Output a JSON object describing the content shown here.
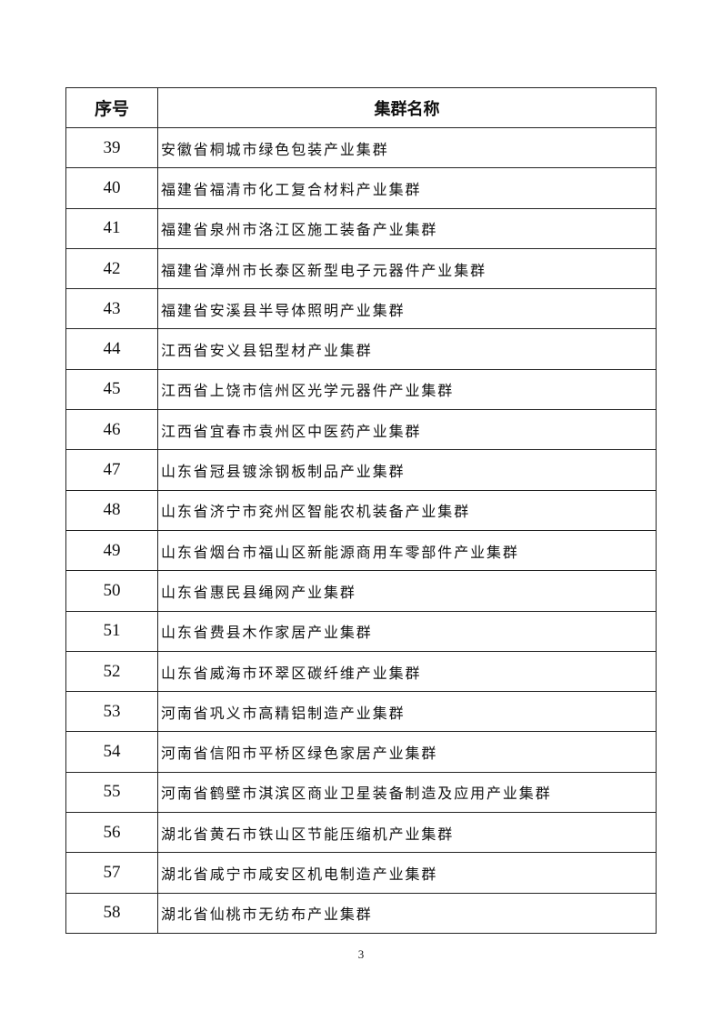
{
  "table": {
    "headers": [
      "序号",
      "集群名称"
    ],
    "rows": [
      [
        "39",
        "安徽省桐城市绿色包装产业集群"
      ],
      [
        "40",
        "福建省福清市化工复合材料产业集群"
      ],
      [
        "41",
        "福建省泉州市洛江区施工装备产业集群"
      ],
      [
        "42",
        "福建省漳州市长泰区新型电子元器件产业集群"
      ],
      [
        "43",
        "福建省安溪县半导体照明产业集群"
      ],
      [
        "44",
        "江西省安义县铝型材产业集群"
      ],
      [
        "45",
        "江西省上饶市信州区光学元器件产业集群"
      ],
      [
        "46",
        "江西省宜春市袁州区中医药产业集群"
      ],
      [
        "47",
        "山东省冠县镀涂钢板制品产业集群"
      ],
      [
        "48",
        "山东省济宁市兖州区智能农机装备产业集群"
      ],
      [
        "49",
        "山东省烟台市福山区新能源商用车零部件产业集群"
      ],
      [
        "50",
        "山东省惠民县绳网产业集群"
      ],
      [
        "51",
        "山东省费县木作家居产业集群"
      ],
      [
        "52",
        "山东省威海市环翠区碳纤维产业集群"
      ],
      [
        "53",
        "河南省巩义市高精铝制造产业集群"
      ],
      [
        "54",
        "河南省信阳市平桥区绿色家居产业集群"
      ],
      [
        "55",
        "河南省鹤壁市淇滨区商业卫星装备制造及应用产业集群"
      ],
      [
        "56",
        "湖北省黄石市铁山区节能压缩机产业集群"
      ],
      [
        "57",
        "湖北省咸宁市咸安区机电制造产业集群"
      ],
      [
        "58",
        "湖北省仙桃市无纺布产业集群"
      ]
    ]
  },
  "page_number": "3"
}
